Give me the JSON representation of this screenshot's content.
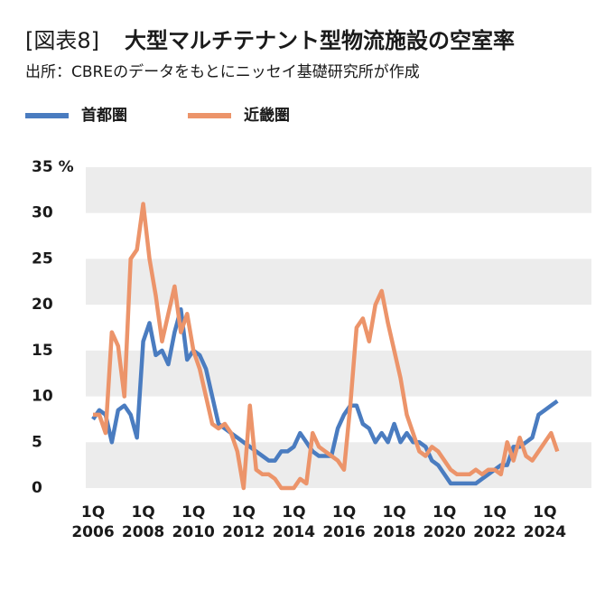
{
  "chart_data": {
    "type": "line",
    "label": "[図表8]",
    "title": "大型マルチテナント型物流施設の空室率",
    "subtitle": "出所：CBREのデータをもとにニッセイ基礎研究所が作成",
    "categories": [
      "1Q 2006",
      null,
      null,
      null,
      null,
      null,
      null,
      null,
      "1Q 2008",
      null,
      null,
      null,
      null,
      null,
      null,
      null,
      "1Q 2010",
      null,
      null,
      null,
      null,
      null,
      null,
      null,
      "1Q 2012",
      null,
      null,
      null,
      null,
      null,
      null,
      null,
      "1Q 2014",
      null,
      null,
      null,
      null,
      null,
      null,
      null,
      "1Q 2016",
      null,
      null,
      null,
      null,
      null,
      null,
      null,
      "1Q 2018",
      null,
      null,
      null,
      null,
      null,
      null,
      null,
      "1Q 2020",
      null,
      null,
      null,
      null,
      null,
      null,
      null,
      "1Q 2022",
      null,
      null,
      null,
      null,
      null,
      null,
      null,
      "1Q 2024",
      null,
      null
    ],
    "series": [
      {
        "name": "首都圏",
        "color": "#4a7cc0",
        "values": [
          7.5,
          8.5,
          8,
          5,
          8.5,
          9,
          8,
          5.5,
          16,
          18,
          14.5,
          15,
          13.5,
          17,
          19.5,
          14,
          15,
          14.5,
          13,
          10,
          7,
          6.5,
          6,
          5.5,
          5,
          4.5,
          4,
          3.5,
          3,
          3,
          4,
          4,
          4.5,
          6,
          5,
          4,
          3.5,
          3.5,
          3.5,
          6.5,
          8,
          9,
          9,
          7,
          6.5,
          5,
          6,
          5,
          7,
          5,
          6,
          5,
          5,
          4.5,
          3,
          2.5,
          1.5,
          0.5,
          0.5,
          0.5,
          0.5,
          0.5,
          1,
          1.5,
          2,
          2.5,
          2.5,
          4.5,
          4.5,
          5,
          5.5,
          8,
          8.5,
          9,
          9.5
        ]
      },
      {
        "name": "近畿圏",
        "color": "#ec946a",
        "values": [
          8,
          8,
          6,
          17,
          15.5,
          10,
          25,
          26,
          31,
          25,
          21,
          16,
          19,
          22,
          17,
          19,
          15,
          13,
          10,
          7,
          6.5,
          7,
          6,
          4,
          0,
          9,
          2,
          1.5,
          1.5,
          1,
          0,
          0,
          0,
          1,
          0.5,
          6,
          4.5,
          4,
          3.5,
          3,
          2,
          9,
          17.5,
          18.5,
          16,
          20,
          21.5,
          18,
          15,
          12,
          8,
          6,
          4,
          3.5,
          4.5,
          4,
          3,
          2,
          1.5,
          1.5,
          1.5,
          2,
          1.5,
          2,
          2,
          1.5,
          5,
          3,
          5.5,
          3.5,
          3,
          4,
          5,
          6,
          4
        ]
      }
    ],
    "ylim": [
      0,
      35
    ],
    "yticks": [
      0,
      5,
      10,
      15,
      20,
      25,
      30,
      {
        "value": 35,
        "label": "35 %"
      }
    ]
  }
}
